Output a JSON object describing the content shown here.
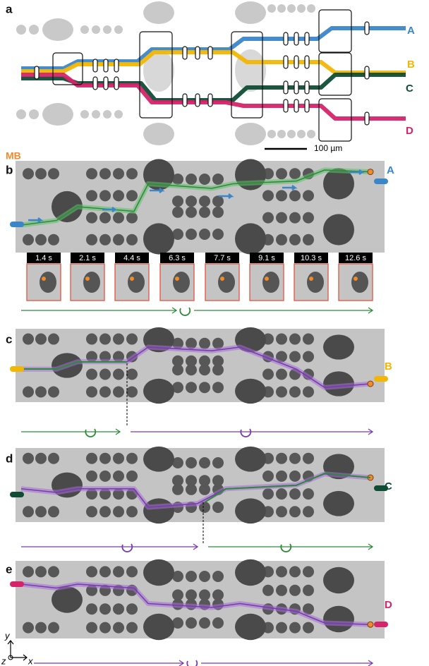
{
  "panel_labels": [
    "a",
    "b",
    "c",
    "d",
    "e"
  ],
  "channel_labels": [
    "A",
    "B",
    "C",
    "D"
  ],
  "scale_bar": "100 µm",
  "mb_label": "MB",
  "time_labels": [
    "1.4 s",
    "2.1 s",
    "4.4 s",
    "6.3 s",
    "7.7 s",
    "9.1 s",
    "10.3 s",
    "12.6 s"
  ],
  "axes": {
    "x": "x",
    "y": "y",
    "z": "z"
  }
}
